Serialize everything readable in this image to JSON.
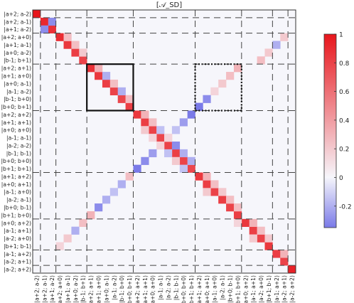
{
  "chart_data": {
    "type": "heatmap",
    "title": "[𝒜_SD]",
    "labels": [
      "|a+2; a-2)",
      "|a+2; a-1)",
      "|a+1; a-2)",
      "|a+2; a+0)",
      "|a+1; a-1)",
      "|a+0; a-2)",
      "|b-1; b+1)",
      "|a+2; a+1)",
      "|a+1; a+0)",
      "|a+0; a-1)",
      "|a-1; a-2)",
      "|b-1; b+0)",
      "|b+0; b+1)",
      "|a+2; a+2)",
      "|a+1; a+1)",
      "|a+0; a+0)",
      "|a-1; a-1)",
      "|a-2; a-2)",
      "|b-1; b-1)",
      "|b+0; b+0)",
      "|b+1; b+1)",
      "|a+1; a+2)",
      "|a+0; a+1)",
      "|a-1; a+0)",
      "|a-2; a-1)",
      "|b+0; b-1)",
      "|b+1; b+0)",
      "|a+0; a+2)",
      "|a-1; a+1)",
      "|a-2; a+0)",
      "|b+1; b-1)",
      "|a-1; a+2)",
      "|a-2; a+1)",
      "|a-2; a+2)"
    ],
    "block_boundaries": [
      1,
      3,
      7,
      13,
      21,
      27,
      31,
      33
    ],
    "diagonal": [
      1,
      0.92,
      0.88,
      0.9,
      0.85,
      0.82,
      0.8,
      0.88,
      0.85,
      0.82,
      0.8,
      0.78,
      0.82,
      0.85,
      0.82,
      0.8,
      0.78,
      0.8,
      0.82,
      0.8,
      0.78,
      0.85,
      0.82,
      0.8,
      0.82,
      0.8,
      0.82,
      0.85,
      0.82,
      0.8,
      0.85,
      0.82,
      0.8,
      0.95
    ],
    "offdiagonal": [
      {
        "row": 1,
        "col": 2,
        "value": -0.3
      },
      {
        "row": 2,
        "col": 1,
        "value": -0.3
      },
      {
        "row": 3,
        "col": 4,
        "value": 0.25
      },
      {
        "row": 4,
        "col": 5,
        "value": 0.25
      },
      {
        "row": 5,
        "col": 6,
        "value": 0.2
      },
      {
        "row": 7,
        "col": 8,
        "value": 0.3
      },
      {
        "row": 8,
        "col": 9,
        "value": -0.2
      },
      {
        "row": 9,
        "col": 10,
        "value": 0.25
      },
      {
        "row": 10,
        "col": 11,
        "value": -0.2
      },
      {
        "row": 11,
        "col": 12,
        "value": 0.25
      },
      {
        "row": 13,
        "col": 14,
        "value": 0.3
      },
      {
        "row": 14,
        "col": 15,
        "value": 0.25
      },
      {
        "row": 15,
        "col": 16,
        "value": -0.15
      },
      {
        "row": 16,
        "col": 17,
        "value": 0.2
      },
      {
        "row": 17,
        "col": 18,
        "value": -0.3
      },
      {
        "row": 18,
        "col": 19,
        "value": -0.2
      },
      {
        "row": 19,
        "col": 20,
        "value": -0.2
      },
      {
        "row": 21,
        "col": 22,
        "value": 0.3
      },
      {
        "row": 22,
        "col": 23,
        "value": 0.25
      },
      {
        "row": 23,
        "col": 24,
        "value": 0.2
      },
      {
        "row": 24,
        "col": 25,
        "value": 0.25
      },
      {
        "row": 25,
        "col": 26,
        "value": 0.25
      },
      {
        "row": 27,
        "col": 28,
        "value": 0.3
      },
      {
        "row": 28,
        "col": 29,
        "value": 0.25
      },
      {
        "row": 29,
        "col": 30,
        "value": 0.2
      },
      {
        "row": 31,
        "col": 32,
        "value": 0.3
      },
      {
        "row": 5,
        "col": 30,
        "value": 0.2
      },
      {
        "row": 6,
        "col": 29,
        "value": 0.25
      },
      {
        "row": 4,
        "col": 31,
        "value": -0.2
      },
      {
        "row": 3,
        "col": 32,
        "value": 0.2
      },
      {
        "row": 7,
        "col": 26,
        "value": 0.3
      },
      {
        "row": 8,
        "col": 25,
        "value": 0.25
      },
      {
        "row": 9,
        "col": 24,
        "value": 0.2
      },
      {
        "row": 10,
        "col": 23,
        "value": 0.15
      },
      {
        "row": 11,
        "col": 22,
        "value": -0.3
      },
      {
        "row": 12,
        "col": 21,
        "value": -0.35
      },
      {
        "row": 13,
        "col": 20,
        "value": -0.35
      },
      {
        "row": 14,
        "col": 19,
        "value": -0.25
      },
      {
        "row": 15,
        "col": 18,
        "value": -0.15
      },
      {
        "row": 16,
        "col": 17,
        "value": 0.15
      },
      {
        "row": 17,
        "col": 16,
        "value": 0.15
      },
      {
        "row": 18,
        "col": 15,
        "value": -0.25
      },
      {
        "row": 19,
        "col": 14,
        "value": -0.3
      },
      {
        "row": 20,
        "col": 13,
        "value": -0.4
      },
      {
        "row": 21,
        "col": 12,
        "value": 0.25
      },
      {
        "row": 22,
        "col": 11,
        "value": -0.2
      },
      {
        "row": 23,
        "col": 10,
        "value": -0.15
      },
      {
        "row": 24,
        "col": 9,
        "value": -0.2
      },
      {
        "row": 25,
        "col": 8,
        "value": -0.3
      },
      {
        "row": 26,
        "col": 7,
        "value": 0.3
      },
      {
        "row": 27,
        "col": 6,
        "value": 0.25
      },
      {
        "row": 28,
        "col": 5,
        "value": -0.2
      },
      {
        "row": 29,
        "col": 4,
        "value": 0.2
      },
      {
        "row": 30,
        "col": 3,
        "value": 0.15
      },
      {
        "row": 15,
        "col": 14,
        "value": 0.2
      },
      {
        "row": 16,
        "col": 15,
        "value": 0.15
      },
      {
        "row": 18,
        "col": 17,
        "value": -0.15
      },
      {
        "row": 19,
        "col": 18,
        "value": 0.2
      },
      {
        "row": 20,
        "col": 19,
        "value": -0.15
      },
      {
        "row": 23,
        "col": 22,
        "value": 0.2
      },
      {
        "row": 27,
        "col": 26,
        "value": 0.15
      },
      {
        "row": 29,
        "col": 28,
        "value": 0.2
      }
    ],
    "solid_box": {
      "rows": [
        7,
        12
      ],
      "cols": [
        7,
        12
      ]
    },
    "dotted_box": {
      "rows": [
        7,
        12
      ],
      "cols": [
        21,
        26
      ]
    },
    "colorbar": {
      "min": -0.35,
      "max": 1,
      "ticks": [
        1,
        0.8,
        0.6,
        0.4,
        0.2,
        0,
        -0.2
      ],
      "tick_labels": [
        "1",
        "0.8",
        "0.6",
        "0.4",
        "0.2",
        "0",
        "-0.2"
      ]
    },
    "grid": "dashed block separators",
    "colors": {
      "positive": "#e8161c",
      "zero": "#f6f6fb",
      "negative": "#7a7ae8"
    }
  }
}
